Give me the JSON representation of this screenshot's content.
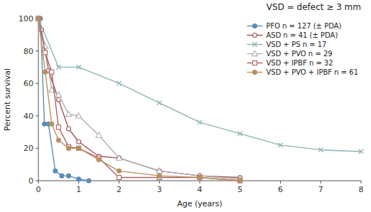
{
  "chart_data": {
    "type": "line",
    "title": "VSD = defect ≥ 3 mm",
    "xlabel": "Age (years)",
    "ylabel": "Percent survival",
    "xlim": [
      0,
      8
    ],
    "ylim": [
      0,
      100
    ],
    "xticks": [
      0,
      1,
      2,
      3,
      4,
      5,
      6,
      7,
      8
    ],
    "yticks": [
      0,
      20,
      40,
      60,
      80,
      100
    ],
    "grid": false,
    "legend": "upper-right",
    "series": [
      {
        "name": "PFO n = 127 (± PDA)",
        "color": "#5b8db8",
        "marker": "circle",
        "x": [
          0.0,
          0.05,
          0.15,
          0.25,
          0.42,
          0.58,
          0.75,
          1.0,
          1.25
        ],
        "values": [
          100,
          100,
          35,
          35,
          6,
          3,
          3,
          1,
          0
        ]
      },
      {
        "name": "ASD n = 41 (± PDA)",
        "color": "#a05050",
        "marker": "open-circle",
        "x": [
          0.0,
          0.08,
          0.25,
          0.5,
          0.75,
          1.0,
          1.5,
          2.0,
          3.0,
          4.0,
          5.0
        ],
        "values": [
          100,
          93,
          68,
          50,
          32,
          24,
          15,
          14,
          6,
          3,
          2
        ]
      },
      {
        "name": "VSD + PS n = 17",
        "color": "#8ab4b2",
        "marker": "x",
        "x": [
          0.0,
          0.5,
          1.0,
          2.0,
          3.0,
          4.0,
          5.0,
          6.0,
          7.0,
          8.0
        ],
        "values": [
          100,
          70,
          70,
          60,
          48,
          36,
          29,
          22,
          19,
          18
        ]
      },
      {
        "name": "VSD + PVO n = 29",
        "color": "#b0b0b0",
        "marker": "open-triangle",
        "x": [
          0.0,
          0.17,
          0.33,
          0.5,
          0.75,
          1.0,
          1.5,
          2.0,
          3.0,
          4.0,
          5.0
        ],
        "values": [
          100,
          83,
          56,
          53,
          41,
          40,
          28,
          14,
          6,
          3,
          1
        ]
      },
      {
        "name": "VSD + IPBF n = 32",
        "color": "#b06060",
        "marker": "open-square",
        "x": [
          0.0,
          0.17,
          0.33,
          0.5,
          0.75,
          1.0,
          1.5,
          2.0,
          3.0,
          4.0,
          5.0
        ],
        "values": [
          100,
          79,
          67,
          33,
          21,
          20,
          14,
          2,
          2,
          2,
          0
        ]
      },
      {
        "name": "VSD + PVO + IPBF n = 61",
        "color": "#b89060",
        "marker": "circle",
        "x": [
          0.0,
          0.17,
          0.33,
          0.5,
          0.75,
          1.0,
          1.5,
          2.0,
          3.0,
          4.0,
          5.0
        ],
        "values": [
          100,
          67,
          35,
          25,
          20,
          20,
          13,
          6,
          3,
          2,
          0
        ]
      }
    ]
  }
}
